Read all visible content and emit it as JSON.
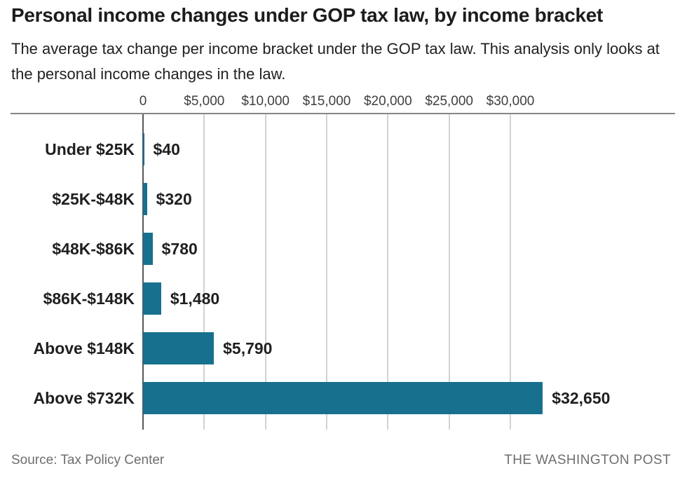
{
  "header": {
    "title": "Personal income changes under GOP tax law, by income bracket",
    "subtitle": "The average tax change per income bracket under the GOP tax law. This analysis only looks at the personal income changes in the law."
  },
  "chart_data": {
    "type": "bar",
    "orientation": "horizontal",
    "title": "Personal income changes under GOP tax law, by income bracket",
    "categories": [
      "Under $25K",
      "$25K-$48K",
      "$48K-$86K",
      "$86K-$148K",
      "Above $148K",
      "Above $732K"
    ],
    "values": [
      40,
      320,
      780,
      1480,
      5790,
      32650
    ],
    "value_labels": [
      "$40",
      "$320",
      "$780",
      "$1,480",
      "$5,790",
      "$32,650"
    ],
    "x_ticks": [
      0,
      5000,
      10000,
      15000,
      20000,
      25000,
      30000
    ],
    "x_tick_labels": [
      "0",
      "$5,000",
      "$10,000",
      "$15,000",
      "$20,000",
      "$25,000",
      "$30,000"
    ],
    "xlim": [
      0,
      30000
    ],
    "grid": true,
    "legend": false,
    "bar_color": "#17708e"
  },
  "colors": {
    "bar": "#17708e",
    "gridline": "#d2d2d2",
    "zero_axis": "#58585a",
    "top_rule": "#868686",
    "text": "#1f1f1f",
    "muted": "#6e6e6e"
  },
  "footer": {
    "source": "Source: Tax Policy Center",
    "credit": "THE WASHINGTON POST"
  }
}
